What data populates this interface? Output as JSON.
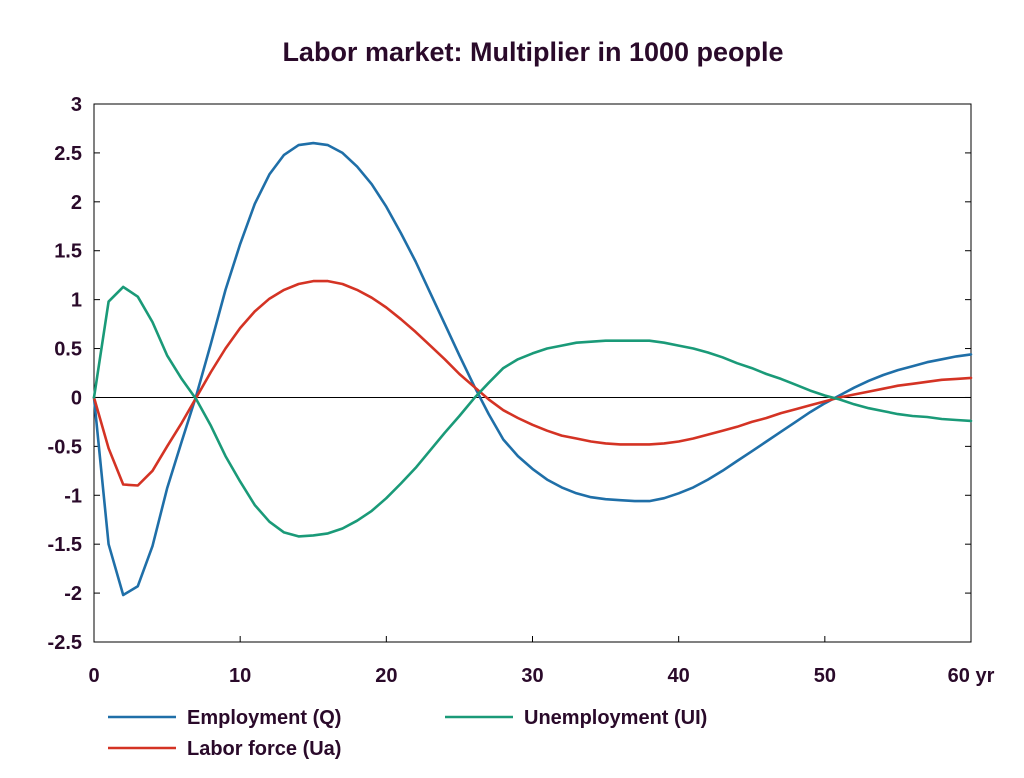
{
  "chart_data": {
    "type": "line",
    "title": "Labor market: Multiplier in 1000 people",
    "xlabel": "",
    "ylabel": "",
    "x_tick_labels": [
      "0",
      "10",
      "20",
      "30",
      "40",
      "50",
      "60 yr"
    ],
    "x_ticks": [
      0,
      10,
      20,
      30,
      40,
      50,
      60
    ],
    "y_ticks": [
      3,
      2.5,
      2,
      1.5,
      1,
      0.5,
      0,
      -0.5,
      -1,
      -1.5,
      -2,
      -2.5
    ],
    "y_tick_labels": [
      "3",
      "2.5",
      "2",
      "1.5",
      "1",
      "0.5",
      "0",
      "-0.5",
      "-1",
      "-1.5",
      "-2",
      "-2.5"
    ],
    "xlim": [
      0,
      60
    ],
    "ylim": [
      -2.5,
      3
    ],
    "grid": false,
    "zero_line": true,
    "legend_position": "bottom",
    "series": [
      {
        "name": "Employment (Q)",
        "color": "#1f6fa8",
        "x": [
          0,
          1,
          2,
          3,
          4,
          5,
          6,
          7,
          8,
          9,
          10,
          11,
          12,
          13,
          14,
          15,
          16,
          17,
          18,
          19,
          20,
          21,
          22,
          23,
          24,
          25,
          26,
          27,
          28,
          29,
          30,
          31,
          32,
          33,
          34,
          35,
          36,
          37,
          38,
          39,
          40,
          41,
          42,
          43,
          44,
          45,
          46,
          47,
          48,
          49,
          50,
          51,
          52,
          53,
          54,
          55,
          56,
          57,
          58,
          59,
          60
        ],
        "y": [
          0,
          -1.5,
          -2.02,
          -1.93,
          -1.52,
          -0.93,
          -0.45,
          0.02,
          0.55,
          1.1,
          1.57,
          1.98,
          2.28,
          2.48,
          2.58,
          2.6,
          2.58,
          2.5,
          2.36,
          2.18,
          1.95,
          1.68,
          1.39,
          1.07,
          0.75,
          0.43,
          0.12,
          -0.17,
          -0.43,
          -0.6,
          -0.73,
          -0.84,
          -0.92,
          -0.98,
          -1.02,
          -1.04,
          -1.05,
          -1.06,
          -1.06,
          -1.03,
          -0.98,
          -0.92,
          -0.84,
          -0.75,
          -0.65,
          -0.55,
          -0.45,
          -0.35,
          -0.25,
          -0.15,
          -0.06,
          0.02,
          0.1,
          0.17,
          0.23,
          0.28,
          0.32,
          0.36,
          0.39,
          0.42,
          0.44
        ]
      },
      {
        "name": "Labor force (Ua)",
        "color": "#d43324",
        "x": [
          0,
          1,
          2,
          3,
          4,
          5,
          6,
          7,
          8,
          9,
          10,
          11,
          12,
          13,
          14,
          15,
          16,
          17,
          18,
          19,
          20,
          21,
          22,
          23,
          24,
          25,
          26,
          27,
          28,
          29,
          30,
          31,
          32,
          33,
          34,
          35,
          36,
          37,
          38,
          39,
          40,
          41,
          42,
          43,
          44,
          45,
          46,
          47,
          48,
          49,
          50,
          51,
          52,
          53,
          54,
          55,
          56,
          57,
          58,
          59,
          60
        ],
        "y": [
          0,
          -0.52,
          -0.89,
          -0.9,
          -0.75,
          -0.5,
          -0.26,
          0.0,
          0.26,
          0.5,
          0.71,
          0.88,
          1.01,
          1.1,
          1.16,
          1.19,
          1.19,
          1.16,
          1.1,
          1.02,
          0.92,
          0.8,
          0.67,
          0.53,
          0.39,
          0.24,
          0.11,
          -0.02,
          -0.13,
          -0.21,
          -0.28,
          -0.34,
          -0.39,
          -0.42,
          -0.45,
          -0.47,
          -0.48,
          -0.48,
          -0.48,
          -0.47,
          -0.45,
          -0.42,
          -0.38,
          -0.34,
          -0.3,
          -0.25,
          -0.21,
          -0.16,
          -0.12,
          -0.08,
          -0.04,
          0.0,
          0.03,
          0.06,
          0.09,
          0.12,
          0.14,
          0.16,
          0.18,
          0.19,
          0.2
        ]
      },
      {
        "name": "Unemployment (UI)",
        "color": "#1a9a78",
        "x": [
          0,
          1,
          2,
          3,
          4,
          5,
          6,
          7,
          8,
          9,
          10,
          11,
          12,
          13,
          14,
          15,
          16,
          17,
          18,
          19,
          20,
          21,
          22,
          23,
          24,
          25,
          26,
          27,
          28,
          29,
          30,
          31,
          32,
          33,
          34,
          35,
          36,
          37,
          38,
          39,
          40,
          41,
          42,
          43,
          44,
          45,
          46,
          47,
          48,
          49,
          50,
          51,
          52,
          53,
          54,
          55,
          56,
          57,
          58,
          59,
          60
        ],
        "y": [
          0,
          0.98,
          1.13,
          1.03,
          0.77,
          0.43,
          0.19,
          -0.02,
          -0.29,
          -0.6,
          -0.86,
          -1.1,
          -1.27,
          -1.38,
          -1.42,
          -1.41,
          -1.39,
          -1.34,
          -1.26,
          -1.16,
          -1.03,
          -0.88,
          -0.72,
          -0.54,
          -0.36,
          -0.19,
          -0.01,
          0.15,
          0.3,
          0.39,
          0.45,
          0.5,
          0.53,
          0.56,
          0.57,
          0.58,
          0.58,
          0.58,
          0.58,
          0.56,
          0.53,
          0.5,
          0.46,
          0.41,
          0.35,
          0.3,
          0.24,
          0.19,
          0.13,
          0.07,
          0.02,
          -0.02,
          -0.07,
          -0.11,
          -0.14,
          -0.17,
          -0.19,
          -0.2,
          -0.22,
          -0.23,
          -0.24
        ]
      }
    ]
  }
}
